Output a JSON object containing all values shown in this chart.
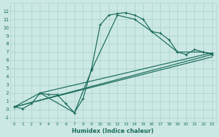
{
  "xlabel": "Humidex (Indice chaleur)",
  "bg_color": "#cce8e4",
  "grid_color": "#aad4ce",
  "line_color": "#1a6b5a",
  "xlim": [
    -0.5,
    23.5
  ],
  "ylim": [
    -1.5,
    13
  ],
  "xticks": [
    0,
    1,
    2,
    3,
    4,
    5,
    6,
    7,
    8,
    9,
    10,
    11,
    12,
    13,
    14,
    15,
    16,
    17,
    18,
    19,
    20,
    21,
    22,
    23
  ],
  "yticks": [
    -1,
    0,
    1,
    2,
    3,
    4,
    5,
    6,
    7,
    8,
    9,
    10,
    11,
    12
  ],
  "series1_x": [
    0,
    1,
    2,
    3,
    4,
    5,
    6,
    7,
    8,
    9,
    10,
    11,
    12,
    13,
    14,
    15,
    16,
    17,
    18,
    19,
    20,
    21,
    22,
    23
  ],
  "series1_y": [
    0.3,
    0.1,
    0.7,
    2.0,
    1.8,
    1.8,
    0.7,
    -0.4,
    1.3,
    5.0,
    10.3,
    11.5,
    11.7,
    11.8,
    11.5,
    11.0,
    9.5,
    9.3,
    8.5,
    7.0,
    6.7,
    7.3,
    7.0,
    6.8
  ],
  "series2_x": [
    0,
    3,
    7,
    9,
    12,
    14,
    16,
    19,
    22,
    23
  ],
  "series2_y": [
    0.3,
    2.0,
    -0.4,
    4.8,
    11.5,
    11.0,
    9.5,
    7.0,
    7.0,
    6.7
  ],
  "series3_x": [
    0,
    23
  ],
  "series3_y": [
    0.3,
    6.7
  ],
  "series4_x": [
    0,
    23
  ],
  "series4_y": [
    0.3,
    6.4
  ],
  "series5_x": [
    3,
    23
  ],
  "series5_y": [
    2.0,
    6.9
  ]
}
